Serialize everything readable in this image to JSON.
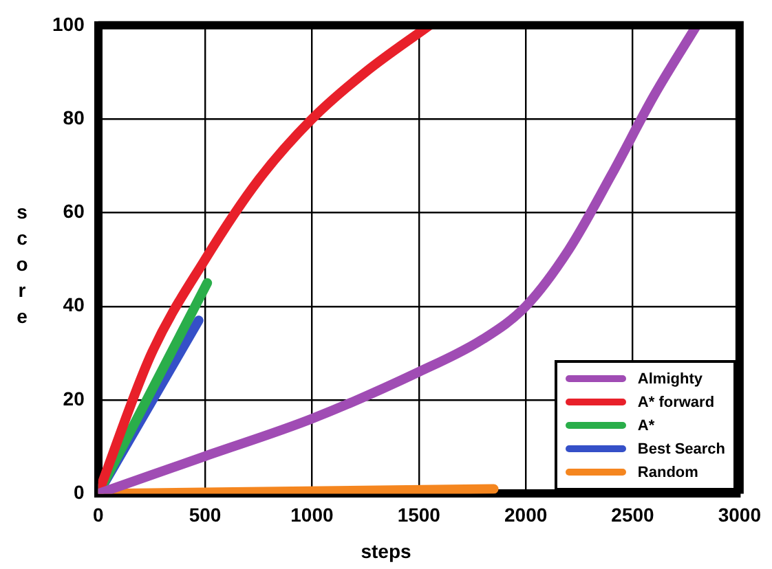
{
  "chart_data": {
    "type": "line",
    "xlabel": "steps",
    "ylabel": "score",
    "xlim": [
      0,
      3000
    ],
    "ylim": [
      0,
      100
    ],
    "xticks": [
      0,
      500,
      1000,
      1500,
      2000,
      2500,
      3000
    ],
    "yticks": [
      0,
      20,
      40,
      60,
      80,
      100
    ],
    "grid": true,
    "legend": "bottom right",
    "marker": "none",
    "line_style": "solid",
    "series": [
      {
        "name": "Almighty",
        "color": "#a04cb4",
        "x": [
          0,
          500,
          1000,
          1500,
          1800,
          2000,
          2200,
          2400,
          2600,
          2800
        ],
        "values": [
          0,
          8,
          16,
          26,
          33,
          40,
          52,
          68,
          85,
          100
        ]
      },
      {
        "name": "A* forward",
        "color": "#e8202a",
        "x": [
          0,
          250,
          500,
          750,
          1000,
          1250,
          1550
        ],
        "values": [
          0,
          30,
          50,
          67,
          80,
          90,
          100
        ]
      },
      {
        "name": "A*",
        "color": "#2aae4a",
        "x": [
          0,
          510
        ],
        "values": [
          0,
          45
        ]
      },
      {
        "name": "Best Search",
        "color": "#3550c8",
        "x": [
          0,
          470
        ],
        "values": [
          0,
          37
        ]
      },
      {
        "name": "Random",
        "color": "#f5861f",
        "x": [
          0,
          1850
        ],
        "values": [
          0,
          1
        ]
      }
    ]
  }
}
